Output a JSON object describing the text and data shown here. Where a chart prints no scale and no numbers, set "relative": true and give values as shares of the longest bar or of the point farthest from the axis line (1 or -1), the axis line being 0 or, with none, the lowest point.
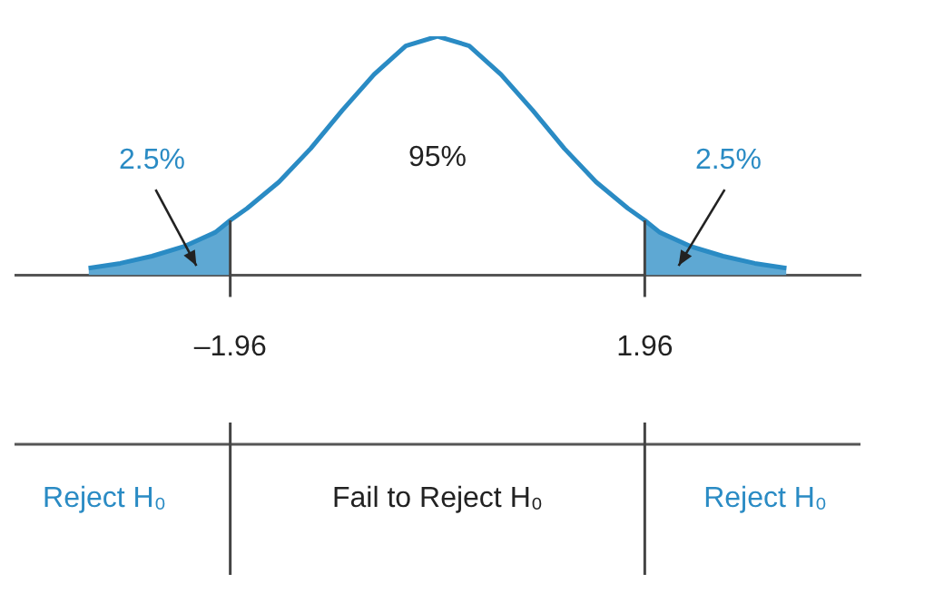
{
  "chart_data": {
    "type": "line",
    "relative": true,
    "x": [
      -3.3,
      -3.0,
      -2.7,
      -2.4,
      -2.1,
      -1.96,
      -1.8,
      -1.5,
      -1.2,
      -0.9,
      -0.6,
      -0.3,
      0,
      0.3,
      0.6,
      0.9,
      1.2,
      1.5,
      1.8,
      1.96,
      2.1,
      2.4,
      2.7,
      3.0,
      3.3
    ],
    "series": [
      {
        "color": "#2a8bc4",
        "values": [
          0.03,
          0.05,
          0.08,
          0.12,
          0.18,
          0.23,
          0.28,
          0.39,
          0.53,
          0.69,
          0.84,
          0.96,
          1,
          0.96,
          0.84,
          0.69,
          0.53,
          0.39,
          0.28,
          0.23,
          0.18,
          0.12,
          0.08,
          0.05,
          0.03
        ]
      },
      {
        "type": "area",
        "color": "#5ea8d3",
        "x": [
          -3.3,
          -3.0,
          -2.7,
          -2.4,
          -2.1,
          -1.96
        ],
        "values": [
          0.03,
          0.05,
          0.08,
          0.12,
          0.18,
          0.23
        ]
      },
      {
        "type": "area",
        "color": "#5ea8d3",
        "x": [
          1.96,
          2.1,
          2.4,
          2.7,
          3.0,
          3.3
        ],
        "values": [
          0.23,
          0.18,
          0.12,
          0.08,
          0.05,
          0.03
        ]
      }
    ],
    "xlim": [
      -4,
      4
    ],
    "xticks": [
      {
        "value": -1.96,
        "label": "–1.96"
      },
      1.96
    ],
    "ref_lines": [
      {
        "axis": "x",
        "value": -1.96,
        "color": "#444444"
      },
      {
        "axis": "x",
        "value": 1.96,
        "color": "#444444"
      }
    ],
    "annotations": [
      "2.5%",
      "95%",
      "2.5%",
      "Reject H₀",
      "Fail to Reject H₀",
      "Reject H₀"
    ],
    "grid": false,
    "legend": false,
    "marker": "none",
    "line_style": "solid"
  }
}
